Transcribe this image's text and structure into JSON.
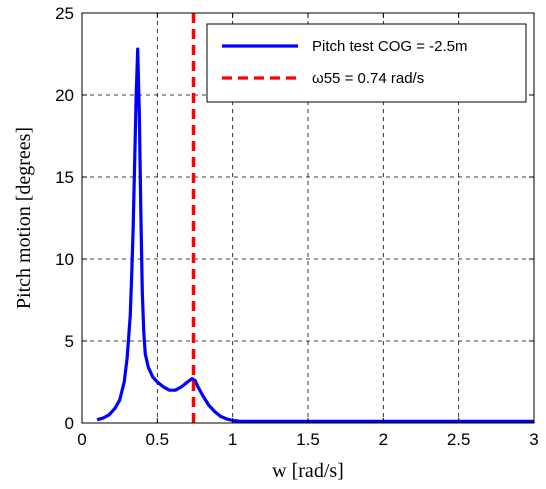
{
  "chart_data": {
    "type": "line",
    "title": "",
    "xlabel": "w [rad/s]",
    "ylabel": "Pitch motion [degrees]",
    "xlim": [
      0,
      3
    ],
    "ylim": [
      0,
      25
    ],
    "grid": true,
    "legend_position": "top-right",
    "x_ticks": [
      0,
      0.5,
      1,
      1.5,
      2,
      2.5,
      3
    ],
    "x_tick_labels": [
      "0",
      "0.5",
      "1",
      "1.5",
      "2",
      "2.5",
      "3"
    ],
    "y_ticks": [
      0,
      5,
      10,
      15,
      20,
      25
    ],
    "y_tick_labels": [
      "0",
      "5",
      "10",
      "15",
      "20",
      "25"
    ],
    "series": [
      {
        "name": "Pitch test COG = -2.5m",
        "color": "#0000ff",
        "style": "solid",
        "x": [
          0.1,
          0.14,
          0.18,
          0.22,
          0.25,
          0.28,
          0.3,
          0.32,
          0.33,
          0.34,
          0.35,
          0.36,
          0.37,
          0.38,
          0.39,
          0.4,
          0.41,
          0.42,
          0.44,
          0.47,
          0.5,
          0.54,
          0.58,
          0.62,
          0.66,
          0.7,
          0.73,
          0.75,
          0.77,
          0.8,
          0.84,
          0.88,
          0.92,
          0.96,
          1.0,
          1.05,
          1.1,
          1.2,
          1.5,
          2.0,
          2.5,
          3.0
        ],
        "y": [
          0.2,
          0.3,
          0.5,
          0.9,
          1.4,
          2.5,
          4.0,
          6.5,
          9.0,
          12.0,
          16.0,
          20.0,
          22.8,
          19.0,
          13.0,
          8.0,
          5.5,
          4.2,
          3.4,
          2.8,
          2.5,
          2.2,
          2.0,
          2.0,
          2.2,
          2.5,
          2.7,
          2.6,
          2.2,
          1.7,
          1.1,
          0.7,
          0.4,
          0.25,
          0.15,
          0.1,
          0.1,
          0.1,
          0.1,
          0.1,
          0.1,
          0.1
        ]
      },
      {
        "name": "ω55 = 0.74 rad/s",
        "color": "#ff0000",
        "style": "dashed",
        "x": [
          0.74,
          0.74
        ],
        "y": [
          0,
          25
        ]
      }
    ]
  }
}
